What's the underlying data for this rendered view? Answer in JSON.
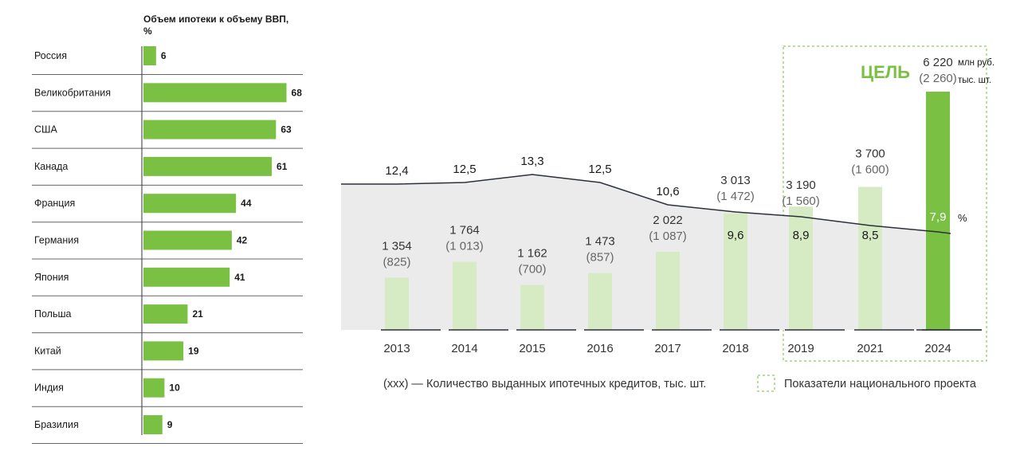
{
  "colors": {
    "bar_green": "#7ac143",
    "bar_light": "#d6ebc4",
    "area_fill": "#ebebeb",
    "line": "#2b3138",
    "target_green": "#7ac143",
    "text": "#1a1a1a",
    "muted": "#555555"
  },
  "chart_data": [
    {
      "type": "bar",
      "orientation": "horizontal",
      "title": "Объем ипотеки к объему ВВП, %",
      "categories": [
        "Россия",
        "Великобритания",
        "США",
        "Канада",
        "Франция",
        "Германия",
        "Япония",
        "Польша",
        "Китай",
        "Индия",
        "Бразилия"
      ],
      "values": [
        6,
        68,
        63,
        61,
        44,
        42,
        41,
        21,
        19,
        10,
        9
      ],
      "xlim": [
        0,
        100
      ],
      "grid": false
    },
    {
      "type": "bar",
      "title": "",
      "categories": [
        "2013",
        "2014",
        "2015",
        "2016",
        "2017",
        "2018",
        "2019",
        "2021",
        "2024"
      ],
      "series": [
        {
          "values": [
            1354,
            1764,
            1162,
            1473,
            2022,
            3013,
            3190,
            3700,
            6220
          ],
          "value_labels": [
            "1 354",
            "1 764",
            "1 162",
            "1 473",
            "2 022",
            "3 013",
            "3 190",
            "3 700",
            "6 220"
          ]
        },
        {
          "values": [
            825,
            1013,
            700,
            857,
            1087,
            1472,
            1560,
            1600,
            2260
          ],
          "value_labels": [
            "(825)",
            "(1 013)",
            "(700)",
            "(857)",
            "(1 087)",
            "(1 472)",
            "(1 560)",
            "(1 600)",
            "(2 260)"
          ]
        },
        {
          "type": "line",
          "values": [
            12.4,
            12.5,
            13.3,
            12.5,
            10.6,
            9.6,
            8.9,
            8.5,
            7.9
          ],
          "value_labels": [
            "12,4",
            "12,5",
            "13,3",
            "12,5",
            "10,6",
            "9,6",
            "8,9",
            "8,5",
            "7,9"
          ]
        }
      ],
      "target_label": "ЦЕЛЬ",
      "target_units": [
        "млн руб.",
        "тыс. шт."
      ],
      "percent_unit": "%",
      "highlight_range": [
        "2019",
        "2024"
      ],
      "legend": {
        "count_note": "(ххх) — Количество выданных ипотечных кредитов, тыс. шт.",
        "national_project": "Показатели национального проекта"
      },
      "grid": false
    }
  ]
}
